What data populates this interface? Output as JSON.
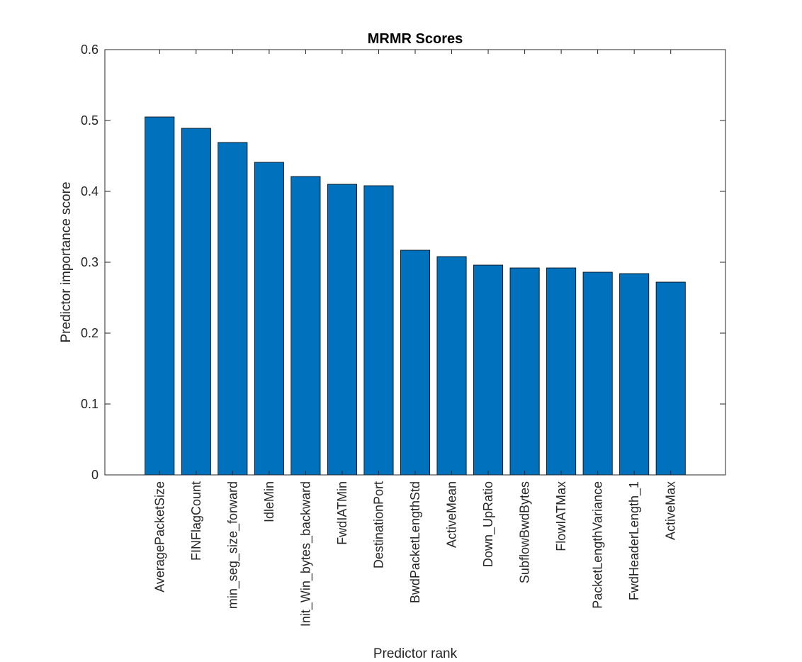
{
  "chart_data": {
    "type": "bar",
    "title": "MRMR Scores",
    "xlabel": "Predictor rank",
    "ylabel": "Predictor importance score",
    "ylim": [
      0,
      0.6
    ],
    "yticks": [
      "0",
      "0.1",
      "0.2",
      "0.3",
      "0.4",
      "0.5",
      "0.6"
    ],
    "categories": [
      "AveragePacketSize",
      "FINFlagCount",
      "min_seg_size_forward",
      "IdleMin",
      "Init_Win_bytes_backward",
      "FwdIATMin",
      "DestinationPort",
      "BwdPacketLengthStd",
      "ActiveMean",
      "Down_UpRatio",
      "SubflowBwdBytes",
      "FlowIATMax",
      "PacketLengthVariance",
      "FwdHeaderLength_1",
      "ActiveMax"
    ],
    "values": [
      0.505,
      0.489,
      0.469,
      0.441,
      0.421,
      0.41,
      0.408,
      0.317,
      0.308,
      0.296,
      0.292,
      0.292,
      0.286,
      0.284,
      0.272
    ],
    "bar_color": "#0072BD",
    "grid": false
  }
}
